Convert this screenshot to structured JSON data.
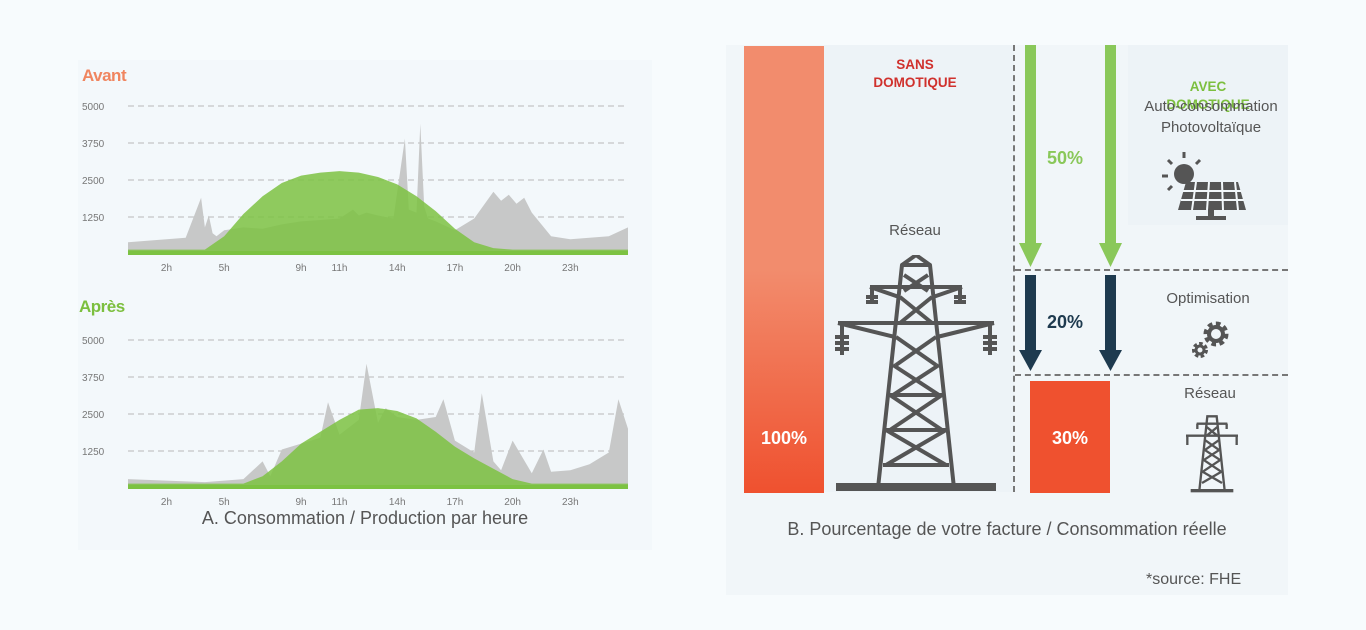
{
  "chart_data": [
    {
      "type": "area",
      "title": "Avant",
      "x_tick_labels": [
        "2h",
        "5h",
        "9h",
        "11h",
        "14h",
        "17h",
        "20h",
        "23h"
      ],
      "y_tick_labels": [
        "5000",
        "3750",
        "2500",
        "1250"
      ],
      "ylim": [
        0,
        5000
      ],
      "xlim": [
        0,
        26
      ],
      "grid": "horizontal dashed",
      "series": [
        {
          "color": "#c7c8c8",
          "role": "consumption",
          "x": [
            0,
            1,
            2,
            3,
            3.8,
            4,
            4.2,
            4.4,
            4.6,
            5,
            6,
            7,
            8,
            9,
            10,
            11,
            11.7,
            12,
            12.4,
            13,
            13.8,
            14.4,
            14.6,
            15,
            15.2,
            15.4,
            15.6,
            16,
            17,
            18,
            19,
            19.4,
            19.8,
            20.2,
            20.6,
            21,
            22,
            23,
            24,
            25,
            26
          ],
          "y": [
            400,
            450,
            500,
            550,
            1900,
            900,
            1300,
            700,
            600,
            800,
            900,
            850,
            1000,
            1100,
            1150,
            1200,
            1500,
            1300,
            1400,
            1300,
            1200,
            3900,
            1500,
            1400,
            4400,
            1600,
            1200,
            1100,
            800,
            1200,
            2100,
            1800,
            2000,
            1700,
            1900,
            1400,
            600,
            500,
            550,
            600,
            900
          ]
        },
        {
          "color": "#7cc242",
          "role": "production",
          "x": [
            0,
            4,
            5,
            6,
            7,
            8,
            9,
            10,
            11,
            12,
            13,
            14,
            15,
            16,
            17,
            18,
            19,
            20,
            21,
            26
          ],
          "y": [
            150,
            150,
            600,
            1350,
            1950,
            2400,
            2650,
            2750,
            2800,
            2750,
            2600,
            2350,
            1950,
            1450,
            850,
            400,
            200,
            150,
            150,
            150
          ]
        }
      ]
    },
    {
      "type": "area",
      "title": "Après",
      "x_tick_labels": [
        "2h",
        "5h",
        "9h",
        "11h",
        "14h",
        "17h",
        "20h",
        "23h"
      ],
      "y_tick_labels": [
        "5000",
        "3750",
        "2500",
        "1250"
      ],
      "ylim": [
        0,
        5000
      ],
      "xlim": [
        0,
        26
      ],
      "grid": "horizontal dashed",
      "series": [
        {
          "color": "#c7c8c8",
          "role": "consumption",
          "x": [
            0,
            2,
            4,
            6,
            7,
            7.4,
            8,
            9,
            10,
            10.4,
            11,
            12,
            12.4,
            13,
            13.4,
            14,
            15,
            16,
            16.4,
            17,
            18,
            18.4,
            19,
            19.4,
            20,
            21,
            21.6,
            22,
            23,
            24,
            25,
            25.5,
            26
          ],
          "y": [
            300,
            250,
            200,
            300,
            900,
            400,
            1300,
            1500,
            1700,
            2900,
            1800,
            2300,
            4200,
            2200,
            2700,
            2400,
            2300,
            2400,
            3000,
            1600,
            1200,
            3200,
            900,
            600,
            1600,
            500,
            1300,
            550,
            600,
            800,
            1200,
            3000,
            2000
          ]
        },
        {
          "color": "#7cc242",
          "role": "production",
          "x": [
            0,
            6,
            7,
            8,
            9,
            10,
            11,
            12,
            13,
            14,
            15,
            16,
            17,
            18,
            19,
            20,
            21,
            26
          ],
          "y": [
            150,
            150,
            400,
            900,
            1500,
            1900,
            2300,
            2650,
            2700,
            2600,
            2350,
            1900,
            1400,
            1000,
            650,
            300,
            150,
            150
          ]
        }
      ]
    },
    {
      "type": "bar",
      "categories": [
        "SANS DOMOTIQUE",
        "AVEC DOMOTIQUE"
      ],
      "values": [
        100,
        30
      ],
      "annotations": [
        "50%",
        "20%"
      ]
    }
  ],
  "panel_a": {
    "title_before": "Avant",
    "title_after": "Après",
    "caption": "A. Consommation / Production par heure"
  },
  "panel_b": {
    "bar_sans_label": "100%",
    "bar_avec_label": "30%",
    "sans_heading": "SANS\nDOMOTIQUE",
    "avec_heading": "AVEC\nDOMOTIQUE",
    "solar_text": "Auto-consommation\nPhotovoltaïque",
    "grid_text_left": "Réseau",
    "grid_text_right": "Réseau",
    "optim_text": "Optimisation",
    "pct_solar": "50%",
    "pct_optim": "20%",
    "caption": "B. Pourcentage de votre facture / Consommation réelle",
    "source": "*source: FHE"
  },
  "colors": {
    "bar_red_top": "#f28c6d",
    "bar_red_bottom": "#ef512f",
    "green": "#8ac85a",
    "dark_blue": "#1e3a4f",
    "heading_red": "#d0312d",
    "heading_green": "#7cbf3e",
    "icon_gray": "#555555"
  }
}
